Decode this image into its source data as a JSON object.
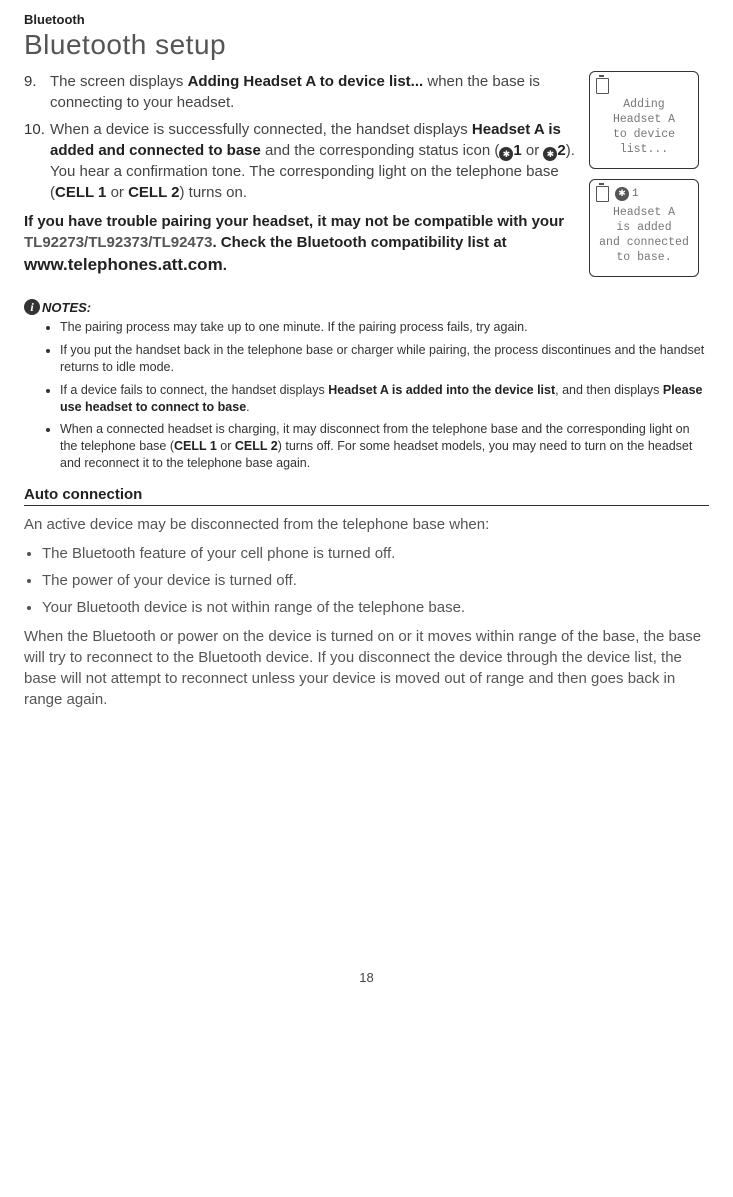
{
  "header": {
    "section_label": "Bluetooth",
    "page_title": "Bluetooth setup"
  },
  "steps": [
    {
      "prefix": "The screen displays ",
      "bold1": "Adding Headset A to device list...",
      "suffix": " when the base is connecting to your headset."
    },
    {
      "seg1": "When a device is successfully connected, the handset displays ",
      "bold1": "Headset A is added and connected to base",
      "seg2": " and the corresponding status icon (",
      "bticon1_num": "1",
      "seg3": " or ",
      "bticon2_num": "2",
      "seg4": "). You hear a confirmation tone. The corresponding light on the telephone base (",
      "bold2": "CELL 1",
      "seg5": " or ",
      "bold3": "CELL 2",
      "seg6": ") turns on."
    }
  ],
  "trouble": {
    "line1": "If you have trouble pairing your headset, it may not be compatible with your ",
    "models": "TL92273/TL92373/TL92473",
    "line2": ". Check the Bluetooth compatibility list at ",
    "url": "www.telephones.att.com",
    "period": "."
  },
  "notes": {
    "heading": "NOTES:",
    "items": [
      {
        "text": "The pairing process may take up to one minute. If the pairing process fails, try again."
      },
      {
        "text": "If you put the handset back in the telephone base or charger while pairing, the process discontinues and the handset returns to idle mode."
      },
      {
        "seg1": "If a device fails to connect, the handset displays ",
        "bold1": "Headset A is added into the device list",
        "seg2": ", and then displays ",
        "bold2": "Please use headset to connect to base",
        "seg3": "."
      },
      {
        "seg1": "When a connected headset is charging, it may disconnect from the telephone base and the corresponding light on the telephone base (",
        "bold1": "CELL 1",
        "seg2": " or ",
        "bold2": "CELL 2",
        "seg3": ") turns off. For some headset models, you may need to turn on the headset and reconnect it to the telephone base again."
      }
    ]
  },
  "auto": {
    "heading": "Auto connection",
    "intro": "An active device may be disconnected from the telephone base when:",
    "bullets": [
      "The Bluetooth feature of your cell phone is turned off.",
      "The power of your device is turned off.",
      "Your Bluetooth device is not within range of the telephone base."
    ],
    "outro": "When the Bluetooth or power on the device is turned on or it moves within range of the base, the base will try to reconnect to the Bluetooth device. If you disconnect the device through the device list, the base will not attempt to reconnect unless your device is moved out of range and then goes back in range again."
  },
  "screens": {
    "screen1": {
      "lines": "Adding\nHeadset A\nto device\nlist..."
    },
    "screen2": {
      "bt_num": "1",
      "lines": "Headset A\nis added\nand connected\nto base."
    }
  },
  "page_number": "18",
  "colors": {
    "text": "#333333",
    "light_text": "#555555",
    "border": "#333333"
  }
}
